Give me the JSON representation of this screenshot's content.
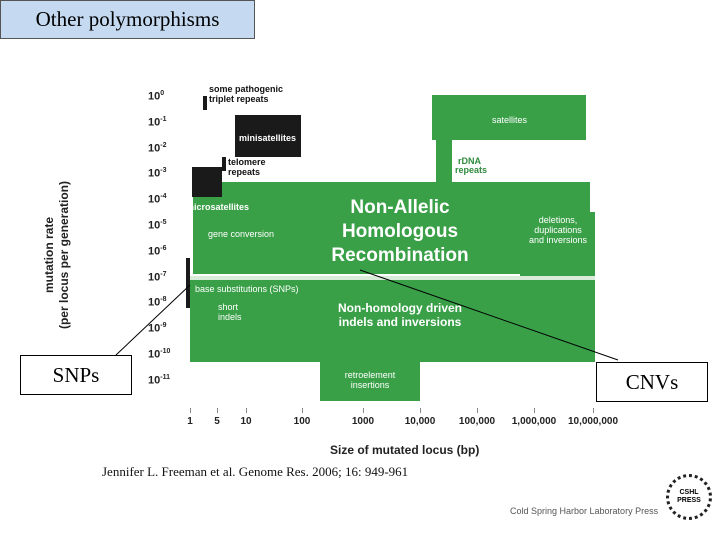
{
  "header": {
    "other_polymorphisms": "Other polymorphisms"
  },
  "callouts": {
    "snps": "SNPs",
    "cnvs": "CNVs"
  },
  "axes": {
    "ylabel_line1": "mutation rate",
    "ylabel_line2": "(per locus per generation)",
    "xlabel": "Size of mutated locus (bp)",
    "y_ticks": [
      {
        "base": "10",
        "exp": "0"
      },
      {
        "base": "10",
        "exp": "-1"
      },
      {
        "base": "10",
        "exp": "-2"
      },
      {
        "base": "10",
        "exp": "-3"
      },
      {
        "base": "10",
        "exp": "-4"
      },
      {
        "base": "10",
        "exp": "-5"
      },
      {
        "base": "10",
        "exp": "-6"
      },
      {
        "base": "10",
        "exp": "-7"
      },
      {
        "base": "10",
        "exp": "-8"
      },
      {
        "base": "10",
        "exp": "-9"
      },
      {
        "base": "10",
        "exp": "-10"
      },
      {
        "base": "10",
        "exp": "-11"
      }
    ],
    "x_ticks": [
      "1",
      "5",
      "10",
      "100",
      "1000",
      "10,000",
      "100,000",
      "1,000,000",
      "10,000,000"
    ]
  },
  "regions": {
    "some_pathogenic": "some pathogenic",
    "triplet_repeats": "triplet repeats",
    "minisatellites": "minisatellites",
    "telomere": "telomere",
    "repeats": "repeats",
    "microsatellites": "microsatellites",
    "satellites": "satellites",
    "rdna": "rDNA",
    "rdna_repeats": "repeats",
    "gene_conversion": "gene conversion",
    "nahr_line1": "Non-Allelic",
    "nahr_line2": "Homologous",
    "nahr_line3": "Recombination",
    "deletions_line1": "deletions,",
    "deletions_line2": "duplications",
    "deletions_line3": "and inversions",
    "base_substitutions": "base substitutions (SNPs)",
    "short": "short",
    "indels": "indels",
    "nhd_line1": "Non-homology driven",
    "nhd_line2": "indels and inversions",
    "retro_line1": "retroelement",
    "retro_line2": "insertions"
  },
  "footer": {
    "citation": "Jennifer L. Freeman et al. Genome Res. 2006; 16: 949-961",
    "publisher": "Cold Spring Harbor Laboratory Press",
    "logo_line1": "CSHL",
    "logo_line2": "PRESS"
  },
  "colors": {
    "green": "#3aa048",
    "black": "#1a1a1a",
    "header_bg": "#c5d9f1"
  }
}
